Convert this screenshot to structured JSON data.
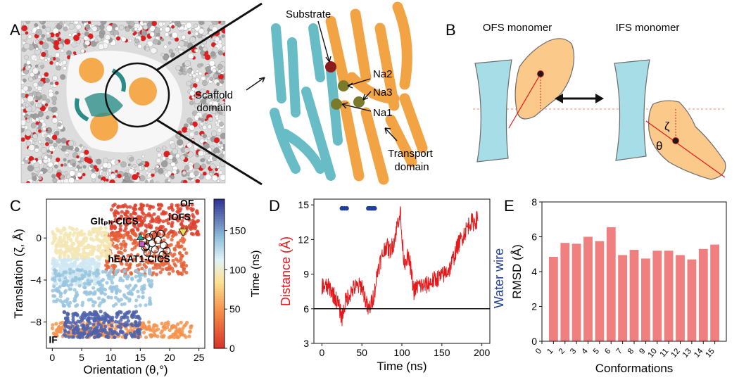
{
  "panels": {
    "A": {
      "letter": "A",
      "labels": {
        "substrate": "Substrate",
        "na2": "Na2",
        "na3": "Na3",
        "na1": "Na1",
        "scaffold": [
          "Scaffold",
          "domain"
        ],
        "transport": [
          "Transport",
          "domain"
        ]
      }
    },
    "B": {
      "letter": "B",
      "ofs": "OFS monomer",
      "ifs": "IFS monomer",
      "zeta": "ζ",
      "theta": "θ"
    },
    "C": {
      "letter": "C"
    },
    "D": {
      "letter": "D"
    },
    "E": {
      "letter": "E"
    }
  },
  "colors": {
    "scaffold": "#72c7d1",
    "transport": "#f4a23a",
    "transport_light": "#fbc98a",
    "red": "#e31a1c",
    "blue": "#1f3f99",
    "bar": "#f08080"
  },
  "chart_data": [
    {
      "id": "C",
      "type": "scatter",
      "xlabel": "Orientation (θ,°)",
      "ylabel": "Translation (ζ, Å)",
      "xlim": [
        -1,
        26
      ],
      "ylim": [
        -10.5,
        3.7
      ],
      "xticks": [
        0,
        5,
        10,
        15,
        20,
        25
      ],
      "yticks": [
        0,
        -4,
        -8
      ],
      "colorbar": {
        "label": "Time (ns)",
        "range": [
          0,
          190
        ],
        "ticks": [
          0,
          50,
          100,
          150
        ]
      },
      "annotations": [
        "OF",
        "IF",
        "Gltₚₕ-CICS",
        "iOFS",
        "hEAAT1-CICS"
      ],
      "clusters": [
        {
          "time_ns": 10,
          "theta": [
            10,
            25
          ],
          "zeta": [
            0.2,
            3.2
          ]
        },
        {
          "time_ns": 25,
          "theta": [
            9,
            23
          ],
          "zeta": [
            -3.5,
            0.5
          ]
        },
        {
          "time_ns": 50,
          "theta": [
            0,
            24
          ],
          "zeta": [
            -9.5,
            -8
          ]
        },
        {
          "time_ns": 95,
          "theta": [
            0,
            10
          ],
          "zeta": [
            -2,
            1
          ]
        },
        {
          "time_ns": 120,
          "theta": [
            0,
            8
          ],
          "zeta": [
            -4.5,
            -2
          ]
        },
        {
          "time_ns": 140,
          "theta": [
            0,
            17
          ],
          "zeta": [
            -6.5,
            -3
          ]
        },
        {
          "time_ns": 175,
          "theta": [
            2,
            15
          ],
          "zeta": [
            -9.5,
            -7
          ]
        }
      ],
      "circles": [
        [
          15.5,
          -0.3
        ],
        [
          16.0,
          -0.8
        ],
        [
          16.5,
          0.1
        ],
        [
          17.0,
          -0.5
        ],
        [
          17.5,
          -1.1
        ],
        [
          18.0,
          -0.2
        ],
        [
          18.5,
          0.4
        ],
        [
          19.0,
          -0.7
        ],
        [
          19.5,
          -1.2
        ],
        [
          17.2,
          0.3
        ],
        [
          16.2,
          -1.4
        ],
        [
          18.8,
          -1.6
        ],
        [
          15.8,
          -0.9
        ]
      ],
      "markers": [
        {
          "name": "Gltₚₕ-CICS",
          "theta": 15.0,
          "zeta": 0.1,
          "color": "#2aa18f",
          "shape": "triangle-up"
        },
        {
          "name": "hEAAT1-CICS",
          "theta": 15.3,
          "zeta": -0.6,
          "color": "#b55fc7",
          "shape": "square"
        },
        {
          "name": "iOFS",
          "theta": 22.3,
          "zeta": 0.6,
          "color": "#e7e14d",
          "shape": "triangle-down"
        }
      ]
    },
    {
      "id": "D",
      "type": "line",
      "xlabel": "Time (ns)",
      "ylabel": "Distance (Å)",
      "ylabel2": "Water wire",
      "xlim": [
        -10,
        210
      ],
      "ylim": [
        3,
        15.5
      ],
      "xticks": [
        0,
        50,
        100,
        150,
        200
      ],
      "yticks": [
        3,
        6,
        9,
        12,
        15
      ],
      "threshold": 6,
      "series": [
        {
          "name": "Distance",
          "x": [
            0,
            10,
            20,
            25,
            30,
            40,
            50,
            58,
            62,
            66,
            70,
            75,
            80,
            85,
            90,
            95,
            98,
            100,
            103,
            106,
            110,
            115,
            120,
            130,
            140,
            150,
            160,
            170,
            180,
            185,
            190,
            195
          ],
          "values": [
            8.0,
            7.8,
            6.5,
            5.2,
            6.8,
            7.8,
            8.0,
            5.8,
            6.5,
            7.5,
            9.5,
            10.5,
            11.5,
            11.0,
            11.8,
            13.5,
            14.5,
            12.0,
            10.0,
            10.5,
            10.0,
            7.5,
            8.0,
            8.0,
            8.5,
            8.8,
            9.5,
            11.5,
            12.8,
            13.5,
            13.5,
            13.8
          ]
        }
      ],
      "water_wire_times": [
        25,
        28,
        31,
        58,
        60,
        62,
        64,
        66
      ]
    },
    {
      "id": "E",
      "type": "bar",
      "xlabel": "Conformations",
      "ylabel": "RMSD (Å)",
      "ylim": [
        0,
        8
      ],
      "yticks": [
        0,
        2,
        4,
        6,
        8
      ],
      "categories": [
        "1",
        "2",
        "3",
        "4",
        "5",
        "6",
        "7",
        "8",
        "9",
        "10",
        "11",
        "12",
        "13",
        "14",
        "15"
      ],
      "values": [
        4.85,
        5.65,
        5.6,
        6.0,
        5.75,
        6.55,
        4.95,
        5.25,
        4.75,
        5.2,
        5.2,
        4.95,
        4.7,
        5.3,
        5.55
      ]
    }
  ]
}
